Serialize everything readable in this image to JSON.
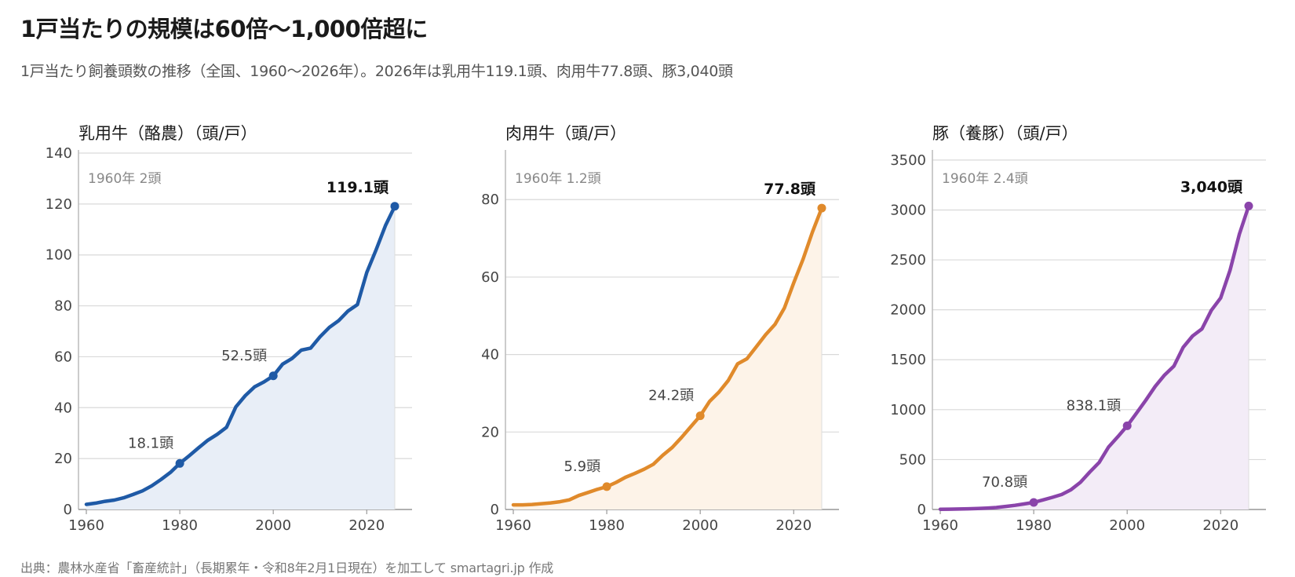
{
  "title": "1戸当たりの規模は60倍〜1,000倍超に",
  "subtitle": "1戸当たり飼養頭数の推移（全国、1960〜2026年）。2026年は乳用牛119.1頭、肉用牛77.8頭、豚3,040頭",
  "source": "出典：農林水産省「畜産統計」（長期累年・令和8年2月1日現在）を加工して smartagri.jp 作成",
  "chart_data": [
    {
      "type": "area",
      "title": "乳用牛（酪農）（頭/戸）",
      "color": "#1f5aa6",
      "fill": "#e8eef7",
      "xlim": [
        1960,
        2026
      ],
      "ylim": [
        0,
        140
      ],
      "yticks": [
        0,
        20,
        40,
        60,
        80,
        100,
        120,
        140
      ],
      "xticks": [
        1960,
        1980,
        2000,
        2020
      ],
      "note": "1960年 2頭",
      "x": [
        1960,
        1962,
        1964,
        1966,
        1968,
        1970,
        1972,
        1974,
        1976,
        1978,
        1980,
        1982,
        1984,
        1986,
        1988,
        1990,
        1992,
        1994,
        1996,
        1998,
        2000,
        2002,
        2004,
        2006,
        2008,
        2010,
        2012,
        2014,
        2016,
        2018,
        2020,
        2022,
        2024,
        2026
      ],
      "values": [
        2,
        2.5,
        3.2,
        3.7,
        4.6,
        5.9,
        7.3,
        9.3,
        11.8,
        14.6,
        18.1,
        21.1,
        24.2,
        27.2,
        29.5,
        32.3,
        40.3,
        44.7,
        48.2,
        50.1,
        52.5,
        57.1,
        59.3,
        62.6,
        63.4,
        67.8,
        71.5,
        74.2,
        78.0,
        80.5,
        93.1,
        102.0,
        111.5,
        119.1
      ],
      "markers": [
        {
          "x": 1980,
          "y": 18.1,
          "label": "18.1頭"
        },
        {
          "x": 2000,
          "y": 52.5,
          "label": "52.5頭"
        }
      ],
      "end_label": "119.1頭"
    },
    {
      "type": "area",
      "title": "肉用牛（頭/戸）",
      "color": "#e08a2b",
      "fill": "#fdf3e8",
      "xlim": [
        1960,
        2026
      ],
      "ylim": [
        0,
        92
      ],
      "yticks": [
        0,
        20,
        40,
        60,
        80
      ],
      "xticks": [
        1960,
        1980,
        2000,
        2020
      ],
      "note": "1960年 1.2頭",
      "x": [
        1960,
        1962,
        1964,
        1966,
        1968,
        1970,
        1972,
        1974,
        1976,
        1978,
        1980,
        1982,
        1984,
        1986,
        1988,
        1990,
        1992,
        1994,
        1996,
        1998,
        2000,
        2002,
        2004,
        2006,
        2008,
        2010,
        2012,
        2014,
        2016,
        2018,
        2020,
        2022,
        2024,
        2026
      ],
      "values": [
        1.2,
        1.2,
        1.3,
        1.5,
        1.7,
        2.0,
        2.5,
        3.6,
        4.4,
        5.2,
        5.9,
        7.0,
        8.3,
        9.3,
        10.4,
        11.7,
        14.0,
        16.0,
        18.6,
        21.4,
        24.2,
        27.9,
        30.3,
        33.3,
        37.6,
        38.9,
        42.0,
        45.1,
        47.8,
        52.0,
        58.5,
        64.6,
        71.6,
        77.8
      ],
      "markers": [
        {
          "x": 1980,
          "y": 5.9,
          "label": "5.9頭"
        },
        {
          "x": 2000,
          "y": 24.2,
          "label": "24.2頭"
        }
      ],
      "end_label": "77.8頭"
    },
    {
      "type": "area",
      "title": "豚（養豚）（頭/戸）",
      "color": "#8a44aa",
      "fill": "#f3ecf7",
      "xlim": [
        1960,
        2026
      ],
      "ylim": [
        0,
        3570
      ],
      "yticks": [
        0,
        500,
        1000,
        1500,
        2000,
        2500,
        3000,
        3500
      ],
      "xticks": [
        1960,
        1980,
        2000,
        2020
      ],
      "note": "1960年 2.4頭",
      "x": [
        1960,
        1962,
        1964,
        1966,
        1968,
        1970,
        1972,
        1974,
        1976,
        1978,
        1980,
        1982,
        1984,
        1986,
        1988,
        1990,
        1992,
        1994,
        1996,
        1998,
        2000,
        2002,
        2004,
        2006,
        2008,
        2010,
        2012,
        2014,
        2016,
        2018,
        2020,
        2022,
        2024,
        2026
      ],
      "values": [
        2.4,
        3,
        5,
        7,
        10,
        14,
        20,
        31,
        42,
        56,
        70.8,
        96,
        122,
        150,
        199,
        272,
        375,
        471,
        625,
        729,
        838.1,
        966,
        1095,
        1233,
        1347,
        1436,
        1625,
        1738,
        1809,
        1995,
        2119,
        2395,
        2758,
        3040
      ],
      "markers": [
        {
          "x": 1980,
          "y": 70.8,
          "label": "70.8頭"
        },
        {
          "x": 2000,
          "y": 838.1,
          "label": "838.1頭"
        }
      ],
      "end_label": "3,040頭"
    }
  ]
}
